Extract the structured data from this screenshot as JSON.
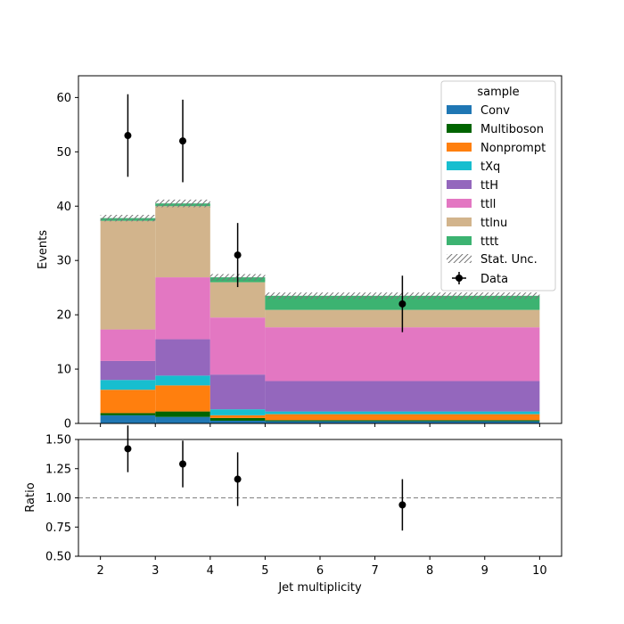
{
  "chart_data": [
    {
      "type": "bar",
      "stacked": true,
      "xlabel": "",
      "ylabel": "Events",
      "ylim": [
        0,
        64
      ],
      "xlim": [
        1.6,
        10.4
      ],
      "yticks": [
        0,
        10,
        20,
        30,
        40,
        50,
        60
      ],
      "bin_edges": [
        2,
        3,
        4,
        5,
        10
      ],
      "legend": {
        "title": "sample",
        "placement": "top-right"
      },
      "series": [
        {
          "name": "Conv",
          "color": "#1f77b4",
          "values": [
            1.5,
            1.2,
            0.5,
            0.4
          ]
        },
        {
          "name": "Multiboson",
          "color": "#006400",
          "values": [
            0.4,
            1.0,
            0.5,
            0.2
          ]
        },
        {
          "name": "Nonprompt",
          "color": "#ff7f0e",
          "values": [
            4.3,
            4.8,
            0.5,
            1.1
          ]
        },
        {
          "name": "tXq",
          "color": "#17becf",
          "values": [
            1.8,
            1.8,
            1.1,
            0.5
          ]
        },
        {
          "name": "ttH",
          "color": "#9467bd",
          "values": [
            3.5,
            6.7,
            6.4,
            5.6
          ]
        },
        {
          "name": "ttll",
          "color": "#e377c2",
          "values": [
            5.8,
            11.4,
            10.5,
            9.9
          ]
        },
        {
          "name": "ttlnu",
          "color": "#d2b48c",
          "values": [
            20.0,
            13.1,
            6.5,
            3.2
          ]
        },
        {
          "name": "tttt",
          "color": "#3cb371",
          "values": [
            0.5,
            0.5,
            0.9,
            2.6
          ]
        }
      ],
      "stat_unc": {
        "name": "Stat. Unc.",
        "halfwidth": [
          0.6,
          0.7,
          0.6,
          0.6
        ]
      },
      "data_points": {
        "name": "Data",
        "x": [
          2.5,
          3.5,
          4.5,
          7.5
        ],
        "y": [
          53,
          52,
          31,
          22
        ],
        "yerr": [
          7.6,
          7.6,
          5.9,
          5.2
        ]
      }
    },
    {
      "type": "scatter",
      "xlabel": "Jet multiplicity",
      "ylabel": "Ratio",
      "ylim": [
        0.5,
        1.5
      ],
      "xlim": [
        1.6,
        10.4
      ],
      "yticks": [
        "0.50",
        "0.75",
        "1.00",
        "1.25",
        "1.50"
      ],
      "xticks": [
        "2",
        "3",
        "4",
        "5",
        "6",
        "7",
        "8",
        "9",
        "10"
      ],
      "reference_line": 1.0,
      "points": {
        "x": [
          2.5,
          3.5,
          4.5,
          7.5
        ],
        "y": [
          1.42,
          1.29,
          1.16,
          0.94
        ],
        "yerr": [
          0.2,
          0.2,
          0.23,
          0.22
        ]
      }
    }
  ]
}
